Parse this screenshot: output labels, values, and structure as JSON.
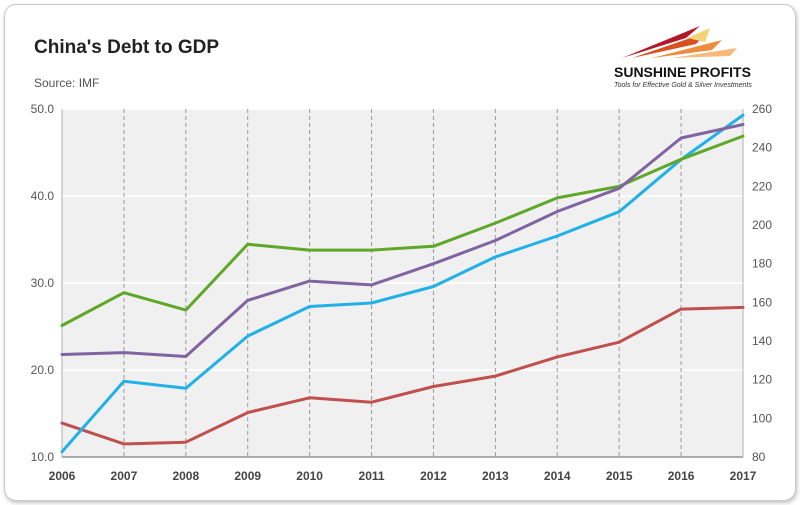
{
  "header": {
    "title": "China's Debt to GDP",
    "source": "Source: IMF"
  },
  "logo": {
    "name": "SUNSHINE PROFITS",
    "tagline": "Tools for Effective Gold & Silver Investments"
  },
  "chart_data": {
    "type": "line",
    "title": "China's Debt to GDP",
    "x": [
      "2006",
      "2007",
      "2008",
      "2009",
      "2010",
      "2011",
      "2012",
      "2013",
      "2014",
      "2015",
      "2016",
      "2017"
    ],
    "left_axis": {
      "ylim": [
        10,
        50
      ],
      "ticks": [
        "10.0",
        "20.0",
        "30.0",
        "40.0",
        "50.0"
      ]
    },
    "right_axis": {
      "ylim": [
        80,
        260
      ],
      "ticks": [
        "80",
        "100",
        "120",
        "140",
        "160",
        "180",
        "200",
        "220",
        "240",
        "260"
      ]
    },
    "grid": true,
    "series": [
      {
        "axis": "left",
        "color": "#c0504d",
        "values": [
          13.9,
          11.5,
          11.7,
          15.1,
          16.8,
          16.3,
          18.1,
          19.3,
          21.5,
          23.2,
          27.0,
          27.2
        ]
      },
      {
        "axis": "left",
        "color": "#1fb1e8",
        "values": [
          10.6,
          18.7,
          17.9,
          23.9,
          27.3,
          27.7,
          29.6,
          33.0,
          35.4,
          38.2,
          44.2,
          49.3
        ]
      },
      {
        "axis": "right",
        "color": "#5fa827",
        "values": [
          148,
          165,
          156,
          190,
          187,
          187,
          189,
          201,
          214,
          220,
          234,
          246
        ]
      },
      {
        "axis": "right",
        "color": "#8064a2",
        "values": [
          133,
          134,
          132,
          161,
          171,
          169,
          180,
          192,
          207,
          219,
          245,
          252
        ]
      }
    ]
  }
}
